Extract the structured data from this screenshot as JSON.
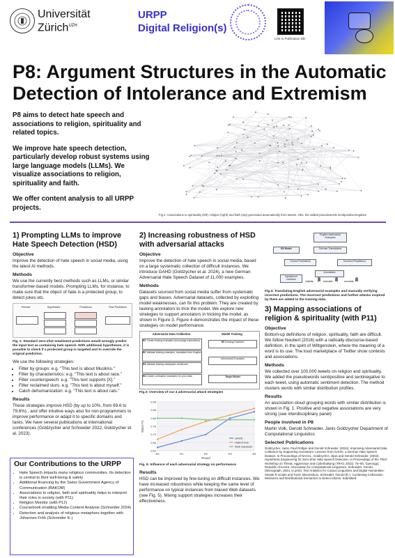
{
  "header": {
    "uzh_line1": "Universität",
    "uzh_line2": "Zürich",
    "uzh_sup": "UZH",
    "urpp_line1": "URPP",
    "urpp_line2": "Digital Religion(s)",
    "qr_caption": "Link to Publication DB"
  },
  "title": "P8: Argument Structures in the Automatic Detection of Intolerance and Extremism",
  "intro": {
    "p1": "P8 aims to detect hate speech and associations to religion, spirituality and related topics.",
    "p2": "We improve hate speech detection, particularly develop robust systems using large language models (LLMs). We visualize associations to religion, spirituality and faith.",
    "p3": "We offer content analysis to all URPP projects."
  },
  "fig1_caption": "Fig.1: Associations to spirituality (left), religion (right) and faith (top) generated automatically from tweets. Obs. the added pseudowords sentipositive/negative",
  "section1": {
    "heading": "1) Prompting LLMs to improve Hate Speech Detection (HSD)",
    "objective_h": "Objective",
    "objective": "Improve the detection of hate speech in social media, using the latest AI methods.",
    "methods_h": "Methods",
    "methods": "We use the currently best methods such as LLMs, or similar transformer-based models. Prompting LLMs, for instance, to make sure that the object of hate is a protected group, to detect jokes etc.",
    "fig2_caption": "Fig. 2. Standard zero-shot entailment predictions would wrongly predict the input text as containing hate speech. With additional hypotheses, it is possible to check if a protected group is targeted and to override the original prediction.",
    "strategies_intro": "We use the following strategies:",
    "strategies": [
      "Filter by groups: e.g. \"This text is about Muslims.\"",
      "Filter by characteristics: e.g. \"This text is about race.\"",
      "Filter counterspeech: e.g. \"This text supports [X].\"",
      "Filter reclaimed slurs: e.g. \"This text is about myself.\"",
      "Catch dehumanization: e.g. \"This text is about rats.\""
    ],
    "results_h": "Results",
    "results": "These strategies improve HSD (by up to 10%, from 69.6 to 79.6%) , and offer intuitive ways also for non-programmers to improve performance or adapt it to specific domains and tasks. We have several publications at international conferences (Goldzycher and Schneider 2022, Goldzycher et al. 2023).",
    "fig2_labels": [
      "Premise",
      "Hypotheses",
      "Predictions",
      "Final Predictions"
    ]
  },
  "contrib": {
    "title": "Our Contributions to the URPP",
    "items": [
      "Hate Speech impacts many religious communities. Its detection is central  to their well-being & safety",
      "Additional financing by the Swiss Government Agency of Communication (BAKOM)",
      "Associations to religion, faith and spirituality  helps to interpret their roles in society (with P11)",
      "Religion Monitor (with P12)",
      "Coursebook enabling Media Content Analysis (Schneider 2024)",
      "Detection and analysis of religious metaphors together with Johannes Fröh (Schneider fc.)"
    ]
  },
  "section2": {
    "heading": "2) Increasing robustness of HSD with adversarial attacks",
    "objective_h": "Objective",
    "objective": "Improve the detection of hate speech in social media, based on a large systematic collection of difficult instances. We introduce GAHD (Goldzycher et al. 2024), a new German Adversarial Hate Speech Dataset of 11,000 examples.",
    "methods_h": "Methods",
    "methods": "Datasets sourced from social media suffer from systematic gaps and biases. Adversarial datasets, collected by exploiting model weaknesses, can fix this problem. They are created by tasking annotators to trick the model. We explore new strategies to support annotators in tricking the model, as shown in Figure 3. Figure 4 demonstrates the impact of these strategies on model performance.",
    "fig3": {
      "left_title": "Adversarial Data Collection",
      "right_title": "Model Training",
      "rows": [
        {
          "id": "R1",
          "text": "Create tricking examples (encourage exploration)"
        },
        {
          "id": "R2",
          "text": "Validate tricking examples, translated from English"
        },
        {
          "id": "R3",
          "text": "Validate tricking newspaper sentences"
        },
        {
          "id": "R4",
          "text": "Create contrastive examples for prior data"
        }
      ],
      "r0": "Existing Datasets",
      "adv": "Adversarial Examples",
      "target": "Target Model"
    },
    "fig3_caption": "Fig.3: Overview of our 4 adversarial attack strategies",
    "fig5_caption": "Fig. 5: Influence of each adversarial strategy on performance",
    "results_h": "Results",
    "results": "HSD can be improved by fine-tuning on difficult instances. We have increased robustness while keeping the same level of performance on typical instances from biased Web datasets (see Fig. 5). Mixing support strategies increases their effectiveness."
  },
  "chart_data": {
    "type": "line",
    "categories": [
      "R0",
      "R1",
      "R2",
      "R3",
      "R4"
    ],
    "xlabel": "Round",
    "ylabel": "Macro F1",
    "ylim": [
      0.6,
      0.9
    ],
    "yticks": [
      "0.90",
      "0.85",
      "0.80",
      "0.75",
      "0.70",
      "0.65",
      "0.60"
    ],
    "series": [
      {
        "name": "GAHD",
        "color": "#4a7fd6",
        "values": [
          0.62,
          0.66,
          0.7,
          0.8,
          0.84
        ]
      },
      {
        "name": "HateCheck",
        "color": "#f29b4a",
        "values": [
          0.67,
          0.73,
          0.78,
          0.82,
          0.86
        ]
      },
      {
        "name": "Web Datasets",
        "color": "#6cc46c",
        "values": [
          0.8,
          0.8,
          0.79,
          0.79,
          0.79
        ]
      }
    ]
  },
  "section3": {
    "fig4_boxes": {
      "english": "English Adversarial Examples",
      "b2": "B2 Model",
      "german": "German Translations",
      "correct": "Correct Predictions",
      "incorrect": "Incorrect Predictions",
      "dynabench": "Dynabench Interface",
      "annotators": "Annotators",
      "validate": "validate",
      "translate": "translate",
      "annotate": "annotate"
    },
    "fig4_caption": "Fig.4: Translating English adversarial examples and manually verifying incorrect predictions. The incorrect predictions and further attacks inspired by them are added to the training data.",
    "heading": "3) Mapping associations of religion & spirituality (with P11)",
    "objective_h": "Objective",
    "objective": "Bottom-up definitions of religion, spirituality, faith are difficult. We follow Neubert (2016) with a radically discourse-based definition, in the spirit of Wittgenstein, where the meaning of a word is its use. The loud marketplace of Twitter show contests and associations.",
    "methods_h": "Methods",
    "methods": "We collected over 100,000 tweets on religion and spirituality. We added the pseudowords sentipositive and sentinegative to each tweet, using automatic sentiment detection. The method clusters words with similar distribution profiles.",
    "results_h": "Results",
    "results": "An association cloud grouping words with similar distribution is shown in Fig. 1. Positive and negative associations are very strong (see interdisciplinary panel)",
    "people_h": "People involved in P8",
    "people": "Martin Volk, Gerold Schneider, Janis Goldzycher Department of Computational Linguistics",
    "pubs_h": "Selected Publications",
    "pubs": "Goldzycher, Janis, Paul Röttger and Gerold Schneider. (2024). Improving Adversarial Data Collection by Supporting Annotators: Lessons from GAHD, a German Hate Speech Dataset. In Proceedings of NAACL. Goldzycher, Janis and Gerold Schneider. (2022). Hypothesis Engineering for Zero-Shot Hate Speech Detection. In Proceedings of the Third Workshop on Threat, Aggression and Cyberbullying (TRAC 2022). 75–90, Gyeongju, Republic of Korea. Association for Computational Linguistics. Schneider, Gerold. (Monograph, 2024, in print). Text Analytics for Corpus Linguistics and Digital Humanities: Simple R scripts and Tools. Bloomsbury. Schneider, Gerold (fc.). Combining Collocation Measures and Distributional Semantics to Detect Idioms. Submitted."
  }
}
